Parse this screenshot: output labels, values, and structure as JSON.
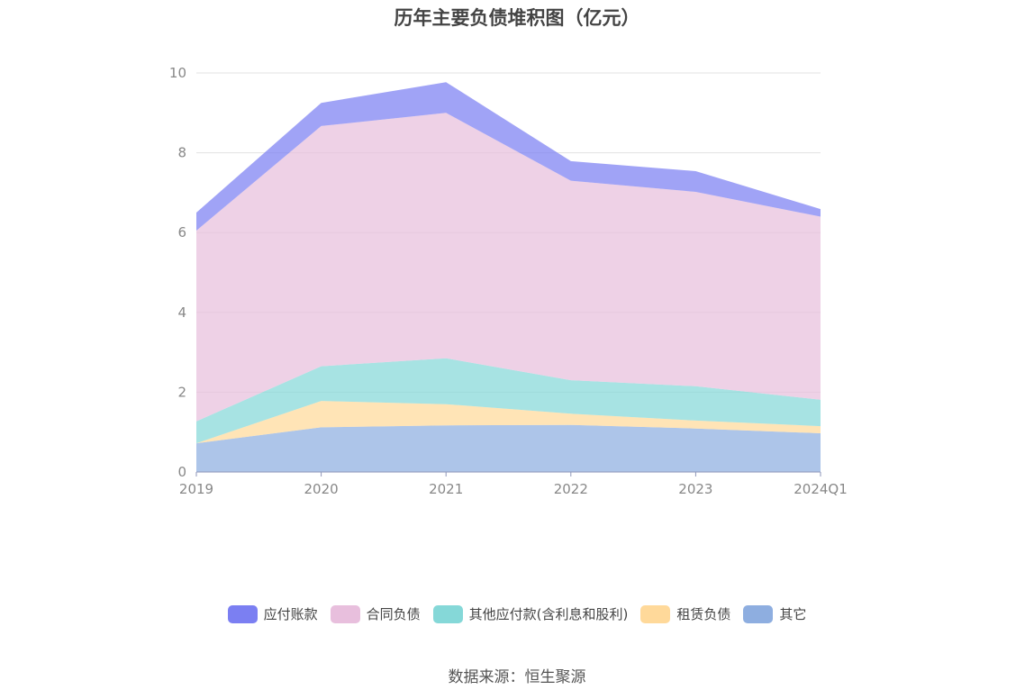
{
  "chart_data": {
    "type": "area",
    "title": "历年主要负债堆积图（亿元）",
    "stacked": true,
    "categories": [
      "2019",
      "2020",
      "2021",
      "2022",
      "2023",
      "2024Q1"
    ],
    "ylim": [
      0,
      10
    ],
    "yticks": [
      0,
      2,
      4,
      6,
      8,
      10
    ],
    "grid": true,
    "legend_position": "bottom",
    "series": [
      {
        "name": "其它",
        "color": "#8eaee0",
        "values": [
          0.72,
          1.12,
          1.17,
          1.18,
          1.09,
          0.97
        ]
      },
      {
        "name": "租赁负债",
        "color": "#ffd99a",
        "values": [
          0.0,
          0.66,
          0.53,
          0.28,
          0.2,
          0.18
        ]
      },
      {
        "name": "其他应付款(含利息和股利)",
        "color": "#85d8d8",
        "values": [
          0.55,
          0.87,
          1.15,
          0.84,
          0.86,
          0.66
        ]
      },
      {
        "name": "合同负债",
        "color": "#e8bfdd",
        "values": [
          4.78,
          6.02,
          6.15,
          5.0,
          4.87,
          4.59
        ]
      },
      {
        "name": "应付账款",
        "color": "#7b7ff2",
        "values": [
          0.45,
          0.58,
          0.77,
          0.49,
          0.52,
          0.19
        ]
      }
    ]
  },
  "legend_order": [
    "应付账款",
    "合同负债",
    "其他应付款(含利息和股利)",
    "租赁负债",
    "其它"
  ],
  "source_text": "数据来源：恒生聚源"
}
